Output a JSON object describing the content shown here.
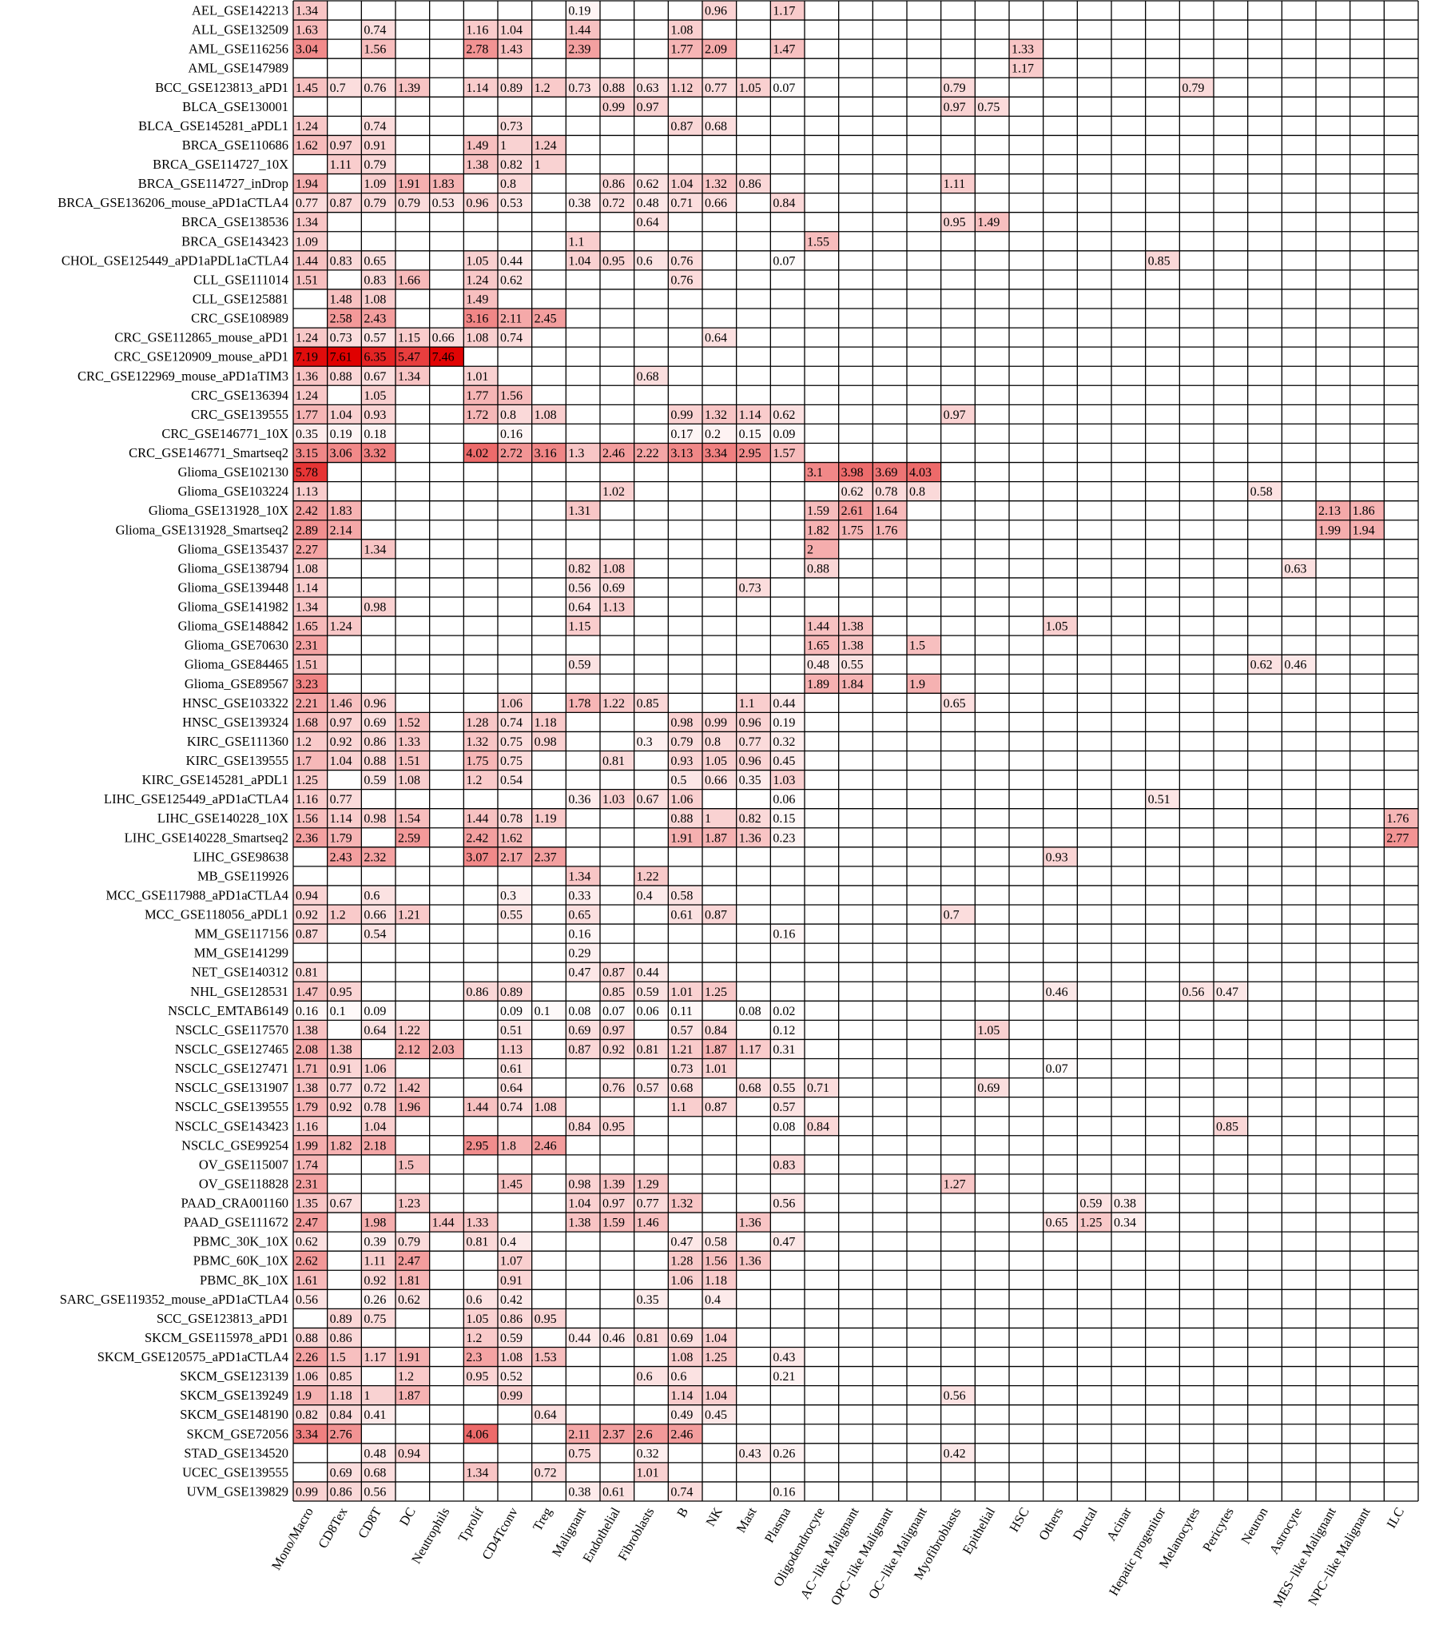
{
  "chart_data": {
    "type": "heatmap",
    "title": "",
    "xlabel": "",
    "ylabel": "",
    "color_scale": {
      "low": "#ffffff",
      "high": "#e00000",
      "min": 0,
      "max": 7.61
    },
    "columns": [
      "Mono/Macro",
      "CD8Tex",
      "CD8T",
      "DC",
      "Neutrophils",
      "Tprolif",
      "CD4Tconv",
      "Treg",
      "Malignant",
      "Endothelial",
      "Fibroblasts",
      "B",
      "NK",
      "Mast",
      "Plasma",
      "Oligodendrocyte",
      "AC−like Malignant",
      "OPC−like Malignant",
      "OC−like Malignant",
      "Myofibroblasts",
      "Epithelial",
      "HSC",
      "Others",
      "Ductal",
      "Acinar",
      "Hepatic progenitor",
      "Melanocytes",
      "Pericytes",
      "Neuron",
      "Astrocyte",
      "MES−like Malignant",
      "NPC−like Malignant",
      "ILC"
    ],
    "rows": [
      {
        "label": "AEL_GSE142213",
        "cells": {
          "0": 1.34,
          "8": 0.19,
          "12": 0.96,
          "14": 1.17
        }
      },
      {
        "label": "ALL_GSE132509",
        "cells": {
          "0": 1.63,
          "2": 0.74,
          "5": 1.16,
          "6": 1.04,
          "8": 1.44,
          "11": 1.08
        }
      },
      {
        "label": "AML_GSE116256",
        "cells": {
          "0": 3.04,
          "2": 1.56,
          "5": 2.78,
          "6": 1.43,
          "8": 2.39,
          "11": 1.77,
          "12": 2.09,
          "14": 1.47,
          "21": 1.33
        }
      },
      {
        "label": "AML_GSE147989",
        "cells": {
          "21": 1.17
        }
      },
      {
        "label": "BCC_GSE123813_aPD1",
        "cells": {
          "0": 1.45,
          "1": 0.7,
          "2": 0.76,
          "3": 1.39,
          "5": 1.14,
          "6": 0.89,
          "7": 1.2,
          "8": 0.73,
          "9": 0.88,
          "10": 0.63,
          "11": 1.12,
          "12": 0.77,
          "13": 1.05,
          "14": 0.07,
          "19": 0.79,
          "26": 0.79
        }
      },
      {
        "label": "BLCA_GSE130001",
        "cells": {
          "9": 0.99,
          "10": 0.97,
          "19": 0.97,
          "20": 0.75
        }
      },
      {
        "label": "BLCA_GSE145281_aPDL1",
        "cells": {
          "0": 1.24,
          "2": 0.74,
          "6": 0.73,
          "11": 0.87,
          "12": 0.68
        }
      },
      {
        "label": "BRCA_GSE110686",
        "cells": {
          "0": 1.62,
          "1": 0.97,
          "2": 0.91,
          "5": 1.49,
          "6": 1,
          "7": 1.24
        }
      },
      {
        "label": "BRCA_GSE114727_10X",
        "cells": {
          "1": 1.11,
          "2": 0.79,
          "5": 1.38,
          "6": 0.82,
          "7": 1
        }
      },
      {
        "label": "BRCA_GSE114727_inDrop",
        "cells": {
          "0": 1.94,
          "2": 1.09,
          "3": 1.91,
          "4": 1.83,
          "6": 0.8,
          "9": 0.86,
          "10": 0.62,
          "11": 1.04,
          "12": 1.32,
          "13": 0.86,
          "19": 1.11
        }
      },
      {
        "label": "BRCA_GSE136206_mouse_aPD1aCTLA4",
        "cells": {
          "0": 0.77,
          "1": 0.87,
          "2": 0.79,
          "3": 0.79,
          "4": 0.53,
          "5": 0.96,
          "6": 0.53,
          "8": 0.38,
          "9": 0.72,
          "10": 0.48,
          "11": 0.71,
          "12": 0.66,
          "14": 0.84
        }
      },
      {
        "label": "BRCA_GSE138536",
        "cells": {
          "0": 1.34,
          "10": 0.64,
          "19": 0.95,
          "20": 1.49
        }
      },
      {
        "label": "BRCA_GSE143423",
        "cells": {
          "0": 1.09,
          "8": 1.1,
          "15": 1.55
        }
      },
      {
        "label": "CHOL_GSE125449_aPD1aPDL1aCTLA4",
        "cells": {
          "0": 1.44,
          "1": 0.83,
          "2": 0.65,
          "5": 1.05,
          "6": 0.44,
          "8": 1.04,
          "9": 0.95,
          "10": 0.6,
          "11": 0.76,
          "14": 0.07,
          "25": 0.85
        }
      },
      {
        "label": "CLL_GSE111014",
        "cells": {
          "0": 1.51,
          "2": 0.83,
          "3": 1.66,
          "5": 1.24,
          "6": 0.62,
          "11": 0.76
        }
      },
      {
        "label": "CLL_GSE125881",
        "cells": {
          "1": 1.48,
          "2": 1.08,
          "5": 1.49
        }
      },
      {
        "label": "CRC_GSE108989",
        "cells": {
          "1": 2.58,
          "2": 2.43,
          "5": 3.16,
          "6": 2.11,
          "7": 2.45
        }
      },
      {
        "label": "CRC_GSE112865_mouse_aPD1",
        "cells": {
          "0": 1.24,
          "1": 0.73,
          "2": 0.57,
          "3": 1.15,
          "4": 0.66,
          "5": 1.08,
          "6": 0.74,
          "12": 0.64
        }
      },
      {
        "label": "CRC_GSE120909_mouse_aPD1",
        "cells": {
          "0": 7.19,
          "1": 7.61,
          "2": 6.35,
          "3": 5.47,
          "4": 7.46
        }
      },
      {
        "label": "CRC_GSE122969_mouse_aPD1aTIM3",
        "cells": {
          "0": 1.36,
          "1": 0.88,
          "2": 0.67,
          "3": 1.34,
          "5": 1.01,
          "10": 0.68
        }
      },
      {
        "label": "CRC_GSE136394",
        "cells": {
          "0": 1.24,
          "2": 1.05,
          "5": 1.77,
          "6": 1.56
        }
      },
      {
        "label": "CRC_GSE139555",
        "cells": {
          "0": 1.77,
          "1": 1.04,
          "2": 0.93,
          "5": 1.72,
          "6": 0.8,
          "7": 1.08,
          "11": 0.99,
          "12": 1.32,
          "13": 1.14,
          "14": 0.62,
          "19": 0.97
        }
      },
      {
        "label": "CRC_GSE146771_10X",
        "cells": {
          "0": 0.35,
          "1": 0.19,
          "2": 0.18,
          "6": 0.16,
          "11": 0.17,
          "12": 0.2,
          "13": 0.15,
          "14": 0.09
        }
      },
      {
        "label": "CRC_GSE146771_Smartseq2",
        "cells": {
          "0": 3.15,
          "1": 3.06,
          "2": 3.32,
          "5": 4.02,
          "6": 2.72,
          "7": 3.16,
          "8": 1.3,
          "9": 2.46,
          "10": 2.22,
          "11": 3.13,
          "12": 3.34,
          "13": 2.95,
          "14": 1.57
        }
      },
      {
        "label": "Glioma_GSE102130",
        "cells": {
          "0": 5.78,
          "15": 3.1,
          "16": 3.98,
          "17": 3.69,
          "18": 4.03
        }
      },
      {
        "label": "Glioma_GSE103224",
        "cells": {
          "0": 1.13,
          "9": 1.02,
          "16": 0.62,
          "17": 0.78,
          "18": 0.8,
          "28": 0.58
        }
      },
      {
        "label": "Glioma_GSE131928_10X",
        "cells": {
          "0": 2.42,
          "1": 1.83,
          "8": 1.31,
          "15": 1.59,
          "16": 2.61,
          "17": 1.64,
          "30": 2.13,
          "31": 1.86
        }
      },
      {
        "label": "Glioma_GSE131928_Smartseq2",
        "cells": {
          "0": 2.89,
          "1": 2.14,
          "15": 1.82,
          "16": 1.75,
          "17": 1.76,
          "30": 1.99,
          "31": 1.94
        }
      },
      {
        "label": "Glioma_GSE135437",
        "cells": {
          "0": 2.27,
          "2": 1.34,
          "15": 2
        }
      },
      {
        "label": "Glioma_GSE138794",
        "cells": {
          "0": 1.08,
          "8": 0.82,
          "9": 1.08,
          "15": 0.88,
          "29": 0.63
        }
      },
      {
        "label": "Glioma_GSE139448",
        "cells": {
          "0": 1.14,
          "8": 0.56,
          "9": 0.69,
          "13": 0.73
        }
      },
      {
        "label": "Glioma_GSE141982",
        "cells": {
          "0": 1.34,
          "2": 0.98,
          "8": 0.64,
          "9": 1.13
        }
      },
      {
        "label": "Glioma_GSE148842",
        "cells": {
          "0": 1.65,
          "1": 1.24,
          "8": 1.15,
          "15": 1.44,
          "16": 1.38,
          "22": 1.05
        }
      },
      {
        "label": "Glioma_GSE70630",
        "cells": {
          "0": 2.31,
          "15": 1.65,
          "16": 1.38,
          "18": 1.5
        }
      },
      {
        "label": "Glioma_GSE84465",
        "cells": {
          "0": 1.51,
          "8": 0.59,
          "15": 0.48,
          "16": 0.55,
          "28": 0.62,
          "29": 0.46
        }
      },
      {
        "label": "Glioma_GSE89567",
        "cells": {
          "0": 3.23,
          "15": 1.89,
          "16": 1.84,
          "18": 1.9
        }
      },
      {
        "label": "HNSC_GSE103322",
        "cells": {
          "0": 2.21,
          "1": 1.46,
          "2": 0.96,
          "6": 1.06,
          "8": 1.78,
          "9": 1.22,
          "10": 0.85,
          "13": 1.1,
          "14": 0.44,
          "19": 0.65
        }
      },
      {
        "label": "HNSC_GSE139324",
        "cells": {
          "0": 1.68,
          "1": 0.97,
          "2": 0.69,
          "3": 1.52,
          "5": 1.28,
          "6": 0.74,
          "7": 1.18,
          "11": 0.98,
          "12": 0.99,
          "13": 0.96,
          "14": 0.19
        }
      },
      {
        "label": "KIRC_GSE111360",
        "cells": {
          "0": 1.2,
          "1": 0.92,
          "2": 0.86,
          "3": 1.33,
          "5": 1.32,
          "6": 0.75,
          "7": 0.98,
          "10": 0.3,
          "11": 0.79,
          "12": 0.8,
          "13": 0.77,
          "14": 0.32
        }
      },
      {
        "label": "KIRC_GSE139555",
        "cells": {
          "0": 1.7,
          "1": 1.04,
          "2": 0.88,
          "3": 1.51,
          "5": 1.75,
          "6": 0.75,
          "9": 0.81,
          "11": 0.93,
          "12": 1.05,
          "13": 0.96,
          "14": 0.45
        }
      },
      {
        "label": "KIRC_GSE145281_aPDL1",
        "cells": {
          "0": 1.25,
          "2": 0.59,
          "3": 1.08,
          "5": 1.2,
          "6": 0.54,
          "11": 0.5,
          "12": 0.66,
          "13": 0.35,
          "14": 1.03
        }
      },
      {
        "label": "LIHC_GSE125449_aPD1aCTLA4",
        "cells": {
          "0": 1.16,
          "1": 0.77,
          "8": 0.36,
          "9": 1.03,
          "10": 0.67,
          "11": 1.06,
          "14": 0.06,
          "25": 0.51
        }
      },
      {
        "label": "LIHC_GSE140228_10X",
        "cells": {
          "0": 1.56,
          "1": 1.14,
          "2": 0.98,
          "3": 1.54,
          "5": 1.44,
          "6": 0.78,
          "7": 1.19,
          "11": 0.88,
          "12": 1,
          "13": 0.82,
          "14": 0.15,
          "32": 1.76
        }
      },
      {
        "label": "LIHC_GSE140228_Smartseq2",
        "cells": {
          "0": 2.36,
          "1": 1.79,
          "3": 2.59,
          "5": 2.42,
          "6": 1.62,
          "11": 1.91,
          "12": 1.87,
          "13": 1.36,
          "14": 0.23,
          "32": 2.77
        }
      },
      {
        "label": "LIHC_GSE98638",
        "cells": {
          "1": 2.43,
          "2": 2.32,
          "5": 3.07,
          "6": 2.17,
          "7": 2.37,
          "22": 0.93
        }
      },
      {
        "label": "MB_GSE119926",
        "cells": {
          "8": 1.34,
          "10": 1.22
        }
      },
      {
        "label": "MCC_GSE117988_aPD1aCTLA4",
        "cells": {
          "0": 0.94,
          "2": 0.6,
          "6": 0.3,
          "8": 0.33,
          "10": 0.4,
          "11": 0.58
        }
      },
      {
        "label": "MCC_GSE118056_aPDL1",
        "cells": {
          "0": 0.92,
          "1": 1.2,
          "2": 0.66,
          "3": 1.21,
          "6": 0.55,
          "8": 0.65,
          "11": 0.61,
          "12": 0.87,
          "19": 0.7
        }
      },
      {
        "label": "MM_GSE117156",
        "cells": {
          "0": 0.87,
          "2": 0.54,
          "8": 0.16,
          "14": 0.16
        }
      },
      {
        "label": "MM_GSE141299",
        "cells": {
          "8": 0.29
        }
      },
      {
        "label": "NET_GSE140312",
        "cells": {
          "0": 0.81,
          "8": 0.47,
          "9": 0.87,
          "10": 0.44
        }
      },
      {
        "label": "NHL_GSE128531",
        "cells": {
          "0": 1.47,
          "1": 0.95,
          "5": 0.86,
          "6": 0.89,
          "9": 0.85,
          "10": 0.59,
          "11": 1.01,
          "12": 1.25,
          "22": 0.46,
          "26": 0.56,
          "27": 0.47
        }
      },
      {
        "label": "NSCLC_EMTAB6149",
        "cells": {
          "0": 0.16,
          "1": 0.1,
          "2": 0.09,
          "6": 0.09,
          "7": 0.1,
          "8": 0.08,
          "9": 0.07,
          "10": 0.06,
          "11": 0.11,
          "13": 0.08,
          "14": 0.02
        }
      },
      {
        "label": "NSCLC_GSE117570",
        "cells": {
          "0": 1.38,
          "2": 0.64,
          "3": 1.22,
          "6": 0.51,
          "8": 0.69,
          "9": 0.97,
          "11": 0.57,
          "12": 0.84,
          "14": 0.12,
          "20": 1.05
        }
      },
      {
        "label": "NSCLC_GSE127465",
        "cells": {
          "0": 2.08,
          "1": 1.38,
          "3": 2.12,
          "4": 2.03,
          "6": 1.13,
          "8": 0.87,
          "9": 0.92,
          "10": 0.81,
          "11": 1.21,
          "12": 1.87,
          "13": 1.17,
          "14": 0.31
        }
      },
      {
        "label": "NSCLC_GSE127471",
        "cells": {
          "0": 1.71,
          "1": 0.91,
          "2": 1.06,
          "6": 0.61,
          "11": 0.73,
          "12": 1.01,
          "22": 0.07
        }
      },
      {
        "label": "NSCLC_GSE131907",
        "cells": {
          "0": 1.38,
          "1": 0.77,
          "2": 0.72,
          "3": 1.42,
          "6": 0.64,
          "9": 0.76,
          "10": 0.57,
          "11": 0.68,
          "13": 0.68,
          "14": 0.55,
          "15": 0.71,
          "20": 0.69
        }
      },
      {
        "label": "NSCLC_GSE139555",
        "cells": {
          "0": 1.79,
          "1": 0.92,
          "2": 0.78,
          "3": 1.96,
          "5": 1.44,
          "6": 0.74,
          "7": 1.08,
          "11": 1.1,
          "12": 0.87,
          "14": 0.57
        }
      },
      {
        "label": "NSCLC_GSE143423",
        "cells": {
          "0": 1.16,
          "2": 1.04,
          "8": 0.84,
          "9": 0.95,
          "14": 0.08,
          "15": 0.84,
          "27": 0.85
        }
      },
      {
        "label": "NSCLC_GSE99254",
        "cells": {
          "0": 1.99,
          "1": 1.82,
          "2": 2.18,
          "5": 2.95,
          "6": 1.8,
          "7": 2.46
        }
      },
      {
        "label": "OV_GSE115007",
        "cells": {
          "0": 1.74,
          "3": 1.5,
          "14": 0.83
        }
      },
      {
        "label": "OV_GSE118828",
        "cells": {
          "0": 2.31,
          "6": 1.45,
          "8": 0.98,
          "9": 1.39,
          "10": 1.29,
          "19": 1.27
        }
      },
      {
        "label": "PAAD_CRA001160",
        "cells": {
          "0": 1.35,
          "1": 0.67,
          "3": 1.23,
          "8": 1.04,
          "9": 0.97,
          "10": 0.77,
          "11": 1.32,
          "14": 0.56,
          "23": 0.59,
          "24": 0.38
        }
      },
      {
        "label": "PAAD_GSE111672",
        "cells": {
          "0": 2.47,
          "2": 1.98,
          "4": 1.44,
          "5": 1.33,
          "8": 1.38,
          "9": 1.59,
          "10": 1.46,
          "13": 1.36,
          "22": 0.65,
          "23": 1.25,
          "24": 0.34
        }
      },
      {
        "label": "PBMC_30K_10X",
        "cells": {
          "0": 0.62,
          "2": 0.39,
          "3": 0.79,
          "5": 0.81,
          "6": 0.4,
          "11": 0.47,
          "12": 0.58,
          "14": 0.47
        }
      },
      {
        "label": "PBMC_60K_10X",
        "cells": {
          "0": 2.62,
          "2": 1.11,
          "3": 2.47,
          "6": 1.07,
          "11": 1.28,
          "12": 1.56,
          "13": 1.36
        }
      },
      {
        "label": "PBMC_8K_10X",
        "cells": {
          "0": 1.61,
          "2": 0.92,
          "3": 1.81,
          "6": 0.91,
          "11": 1.06,
          "12": 1.18
        }
      },
      {
        "label": "SARC_GSE119352_mouse_aPD1aCTLA4",
        "cells": {
          "0": 0.56,
          "2": 0.26,
          "3": 0.62,
          "5": 0.6,
          "6": 0.42,
          "10": 0.35,
          "12": 0.4
        }
      },
      {
        "label": "SCC_GSE123813_aPD1",
        "cells": {
          "1": 0.89,
          "2": 0.75,
          "5": 1.05,
          "6": 0.86,
          "7": 0.95
        }
      },
      {
        "label": "SKCM_GSE115978_aPD1",
        "cells": {
          "0": 0.88,
          "1": 0.86,
          "5": 1.2,
          "6": 0.59,
          "8": 0.44,
          "9": 0.46,
          "10": 0.81,
          "11": 0.69,
          "12": 1.04
        }
      },
      {
        "label": "SKCM_GSE120575_aPD1aCTLA4",
        "cells": {
          "0": 2.26,
          "1": 1.5,
          "2": 1.17,
          "3": 1.91,
          "5": 2.3,
          "6": 1.08,
          "7": 1.53,
          "11": 1.08,
          "12": 1.25,
          "14": 0.43
        }
      },
      {
        "label": "SKCM_GSE123139",
        "cells": {
          "0": 1.06,
          "1": 0.85,
          "3": 1.2,
          "5": 0.95,
          "6": 0.52,
          "10": 0.6,
          "11": 0.6,
          "14": 0.21
        }
      },
      {
        "label": "SKCM_GSE139249",
        "cells": {
          "0": 1.9,
          "1": 1.18,
          "2": 1,
          "3": 1.87,
          "6": 0.99,
          "11": 1.14,
          "12": 1.04,
          "19": 0.56
        }
      },
      {
        "label": "SKCM_GSE148190",
        "cells": {
          "0": 0.82,
          "1": 0.84,
          "2": 0.41,
          "7": 0.64,
          "11": 0.49,
          "12": 0.45
        }
      },
      {
        "label": "SKCM_GSE72056",
        "cells": {
          "0": 3.34,
          "1": 2.76,
          "5": 4.06,
          "8": 2.11,
          "9": 2.37,
          "10": 2.6,
          "11": 2.46
        }
      },
      {
        "label": "STAD_GSE134520",
        "cells": {
          "2": 0.48,
          "3": 0.94,
          "8": 0.75,
          "10": 0.32,
          "13": 0.43,
          "14": 0.26,
          "19": 0.42
        }
      },
      {
        "label": "UCEC_GSE139555",
        "cells": {
          "1": 0.69,
          "2": 0.68,
          "5": 1.34,
          "7": 0.72,
          "10": 1.01
        }
      },
      {
        "label": "UVM_GSE139829",
        "cells": {
          "0": 0.99,
          "1": 0.86,
          "2": 0.56,
          "8": 0.38,
          "9": 0.61,
          "11": 0.74,
          "14": 0.16
        }
      }
    ]
  }
}
